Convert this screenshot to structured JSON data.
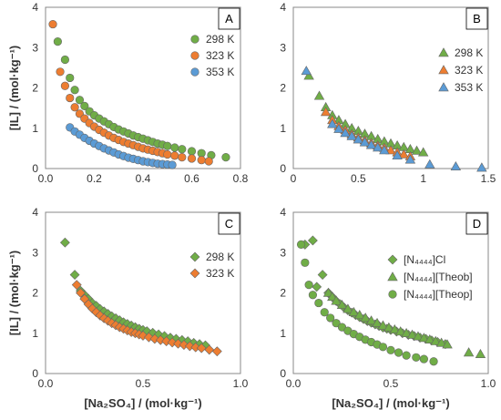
{
  "chart_data": [
    {
      "panel": "A",
      "type": "scatter",
      "ylabel": "[IL] / (mol·kg⁻¹)",
      "xlabel": "",
      "xlim": [
        0,
        0.8
      ],
      "ylim": [
        0,
        4
      ],
      "xticks": [
        0,
        0.2,
        0.4,
        0.6,
        0.8
      ],
      "xtick_labels": [
        "0.0",
        "0.2",
        "0.4",
        "0.6",
        "0.8"
      ],
      "yticks": [
        0,
        1,
        2,
        3,
        4
      ],
      "ytick_labels": [
        "0",
        "1",
        "2",
        "3",
        "4"
      ],
      "legend_position": "right",
      "series": [
        {
          "name": "298 K",
          "marker": "circle",
          "color": "#70ad47",
          "x": [
            0.05,
            0.08,
            0.1,
            0.12,
            0.14,
            0.16,
            0.18,
            0.2,
            0.22,
            0.24,
            0.26,
            0.28,
            0.3,
            0.32,
            0.34,
            0.36,
            0.38,
            0.4,
            0.42,
            0.44,
            0.46,
            0.48,
            0.5,
            0.53,
            0.56,
            0.6,
            0.64,
            0.68,
            0.74
          ],
          "y": [
            3.15,
            2.7,
            2.25,
            1.95,
            1.7,
            1.55,
            1.42,
            1.32,
            1.24,
            1.17,
            1.1,
            1.03,
            0.97,
            0.92,
            0.87,
            0.82,
            0.78,
            0.74,
            0.7,
            0.66,
            0.62,
            0.59,
            0.56,
            0.52,
            0.48,
            0.43,
            0.38,
            0.33,
            0.28
          ]
        },
        {
          "name": "323 K",
          "marker": "circle",
          "color": "#ed7d31",
          "x": [
            0.03,
            0.06,
            0.08,
            0.1,
            0.12,
            0.14,
            0.16,
            0.18,
            0.2,
            0.22,
            0.24,
            0.26,
            0.28,
            0.3,
            0.32,
            0.34,
            0.36,
            0.38,
            0.4,
            0.42,
            0.44,
            0.46,
            0.48,
            0.5,
            0.53,
            0.56,
            0.6,
            0.64,
            0.67
          ],
          "y": [
            3.58,
            2.4,
            2.05,
            1.75,
            1.52,
            1.36,
            1.24,
            1.13,
            1.04,
            0.96,
            0.89,
            0.82,
            0.76,
            0.71,
            0.66,
            0.62,
            0.58,
            0.54,
            0.5,
            0.47,
            0.44,
            0.41,
            0.38,
            0.35,
            0.32,
            0.28,
            0.25,
            0.21,
            0.18
          ]
        },
        {
          "name": "353 K",
          "marker": "circle",
          "color": "#5b9bd5",
          "x": [
            0.1,
            0.12,
            0.14,
            0.16,
            0.18,
            0.2,
            0.22,
            0.24,
            0.26,
            0.28,
            0.3,
            0.32,
            0.34,
            0.36,
            0.38,
            0.4,
            0.42,
            0.44,
            0.46,
            0.48,
            0.5,
            0.52
          ],
          "y": [
            1.02,
            0.92,
            0.84,
            0.76,
            0.69,
            0.62,
            0.56,
            0.5,
            0.45,
            0.4,
            0.35,
            0.31,
            0.27,
            0.24,
            0.21,
            0.18,
            0.16,
            0.14,
            0.12,
            0.11,
            0.1,
            0.09
          ]
        }
      ]
    },
    {
      "panel": "B",
      "type": "scatter",
      "ylabel": "",
      "xlabel": "",
      "xlim": [
        0,
        1.5
      ],
      "ylim": [
        0,
        4
      ],
      "xticks": [
        0,
        0.5,
        1,
        1.5
      ],
      "xtick_labels": [
        "0",
        "0.5",
        "1",
        "1.5"
      ],
      "yticks": [
        0,
        1,
        2,
        3,
        4
      ],
      "ytick_labels": [
        "0",
        "1",
        "2",
        "3",
        "4"
      ],
      "legend_position": "right",
      "series": [
        {
          "name": "298 K",
          "marker": "triangle",
          "color": "#70ad47",
          "x": [
            0.12,
            0.2,
            0.25,
            0.3,
            0.35,
            0.4,
            0.45,
            0.5,
            0.55,
            0.6,
            0.65,
            0.7,
            0.75,
            0.8,
            0.85,
            0.9,
            0.95,
            1.0
          ],
          "y": [
            2.3,
            1.8,
            1.52,
            1.32,
            1.2,
            1.1,
            1.0,
            0.93,
            0.86,
            0.8,
            0.73,
            0.67,
            0.62,
            0.57,
            0.53,
            0.48,
            0.44,
            0.4
          ]
        },
        {
          "name": "323 K",
          "marker": "triangle",
          "color": "#ed7d31",
          "x": [
            0.25,
            0.3,
            0.35,
            0.4,
            0.45,
            0.5,
            0.55,
            0.6,
            0.65,
            0.7,
            0.75,
            0.8,
            0.85,
            0.9
          ],
          "y": [
            1.4,
            1.2,
            1.05,
            0.95,
            0.85,
            0.77,
            0.7,
            0.63,
            0.57,
            0.51,
            0.45,
            0.4,
            0.35,
            0.3
          ]
        },
        {
          "name": "353 K",
          "marker": "triangle",
          "color": "#5b9bd5",
          "x": [
            0.1,
            0.3,
            0.35,
            0.4,
            0.45,
            0.5,
            0.55,
            0.6,
            0.65,
            0.7,
            0.8,
            0.9,
            1.05,
            1.25,
            1.45
          ],
          "y": [
            2.42,
            1.1,
            0.98,
            0.88,
            0.8,
            0.72,
            0.65,
            0.58,
            0.52,
            0.45,
            0.32,
            0.22,
            0.1,
            0.05,
            0.02
          ]
        }
      ]
    },
    {
      "panel": "C",
      "type": "scatter",
      "ylabel": "[IL] / (mol·kg⁻¹)",
      "xlabel": "[Na₂SO₄] / (mol·kg⁻¹)",
      "xlim": [
        0,
        1
      ],
      "ylim": [
        0,
        4
      ],
      "xticks": [
        0,
        0.5,
        1
      ],
      "xtick_labels": [
        "0.0",
        "0.5",
        "1.0"
      ],
      "yticks": [
        0,
        1,
        2,
        3,
        4
      ],
      "ytick_labels": [
        "0",
        "1",
        "2",
        "3",
        "4"
      ],
      "legend_position": "right",
      "series": [
        {
          "name": "298 K",
          "marker": "diamond",
          "color": "#70ad47",
          "x": [
            0.1,
            0.15,
            0.18,
            0.2,
            0.22,
            0.24,
            0.26,
            0.28,
            0.3,
            0.32,
            0.34,
            0.36,
            0.38,
            0.4,
            0.42,
            0.44,
            0.46,
            0.48,
            0.5,
            0.52,
            0.55,
            0.58,
            0.61,
            0.64,
            0.67,
            0.7,
            0.73,
            0.76,
            0.79,
            0.82
          ],
          "y": [
            3.25,
            2.45,
            2.05,
            1.95,
            1.85,
            1.75,
            1.68,
            1.6,
            1.54,
            1.48,
            1.42,
            1.37,
            1.32,
            1.27,
            1.23,
            1.19,
            1.15,
            1.11,
            1.08,
            1.05,
            1.01,
            0.97,
            0.93,
            0.89,
            0.86,
            0.83,
            0.8,
            0.76,
            0.73,
            0.7
          ]
        },
        {
          "name": "323 K",
          "marker": "diamond",
          "color": "#ed7d31",
          "x": [
            0.16,
            0.18,
            0.2,
            0.22,
            0.24,
            0.26,
            0.28,
            0.3,
            0.32,
            0.34,
            0.36,
            0.38,
            0.4,
            0.42,
            0.44,
            0.46,
            0.48,
            0.5,
            0.53,
            0.56,
            0.59,
            0.62,
            0.65,
            0.68,
            0.71,
            0.74,
            0.77,
            0.8,
            0.84,
            0.88
          ],
          "y": [
            2.2,
            2.0,
            1.85,
            1.72,
            1.61,
            1.52,
            1.44,
            1.37,
            1.31,
            1.25,
            1.2,
            1.15,
            1.11,
            1.07,
            1.03,
            1.0,
            0.97,
            0.94,
            0.9,
            0.86,
            0.83,
            0.8,
            0.77,
            0.74,
            0.71,
            0.68,
            0.65,
            0.63,
            0.59,
            0.55
          ]
        }
      ]
    },
    {
      "panel": "D",
      "type": "scatter",
      "ylabel": "",
      "xlabel": "[Na₂SO₄] / (mol·kg⁻¹)",
      "xlim": [
        0,
        1
      ],
      "ylim": [
        0,
        4
      ],
      "xticks": [
        0,
        0.5,
        1
      ],
      "xtick_labels": [
        "0.0",
        "0.5",
        "1.0"
      ],
      "yticks": [
        0,
        1,
        2,
        3,
        4
      ],
      "ytick_labels": [
        "0",
        "1",
        "2",
        "3",
        "4"
      ],
      "legend_position": "right",
      "series": [
        {
          "name": "[N₄₄₄₄]Cl",
          "marker": "diamond",
          "color": "#70ad47",
          "x": [
            0.06,
            0.1,
            0.12,
            0.15,
            0.18,
            0.2,
            0.22,
            0.24,
            0.26,
            0.28,
            0.3,
            0.32,
            0.34,
            0.36,
            0.38,
            0.4,
            0.42,
            0.44,
            0.46,
            0.48,
            0.5,
            0.53,
            0.56,
            0.59,
            0.62,
            0.65,
            0.68,
            0.71,
            0.74,
            0.78
          ],
          "y": [
            3.2,
            3.3,
            2.15,
            2.45,
            2.0,
            1.9,
            1.8,
            1.72,
            1.64,
            1.57,
            1.51,
            1.45,
            1.4,
            1.35,
            1.3,
            1.26,
            1.22,
            1.18,
            1.14,
            1.11,
            1.08,
            1.04,
            1.0,
            0.96,
            0.93,
            0.89,
            0.86,
            0.82,
            0.78,
            0.73
          ]
        },
        {
          "name": "[N₄₄₄₄][Theob]",
          "marker": "triangle",
          "color": "#70ad47",
          "x": [
            0.18,
            0.2,
            0.22,
            0.25,
            0.28,
            0.31,
            0.34,
            0.37,
            0.4,
            0.43,
            0.46,
            0.49,
            0.52,
            0.55,
            0.58,
            0.61,
            0.64,
            0.67,
            0.7,
            0.73,
            0.76,
            0.79,
            0.9,
            0.96
          ],
          "y": [
            2.0,
            1.9,
            1.8,
            1.7,
            1.6,
            1.52,
            1.45,
            1.38,
            1.31,
            1.25,
            1.19,
            1.14,
            1.09,
            1.04,
            1.0,
            0.96,
            0.92,
            0.88,
            0.84,
            0.8,
            0.76,
            0.72,
            0.52,
            0.48
          ]
        },
        {
          "name": "[N₄₄₄₄][Theop]",
          "marker": "circle",
          "color": "#70ad47",
          "x": [
            0.04,
            0.06,
            0.08,
            0.1,
            0.13,
            0.16,
            0.19,
            0.22,
            0.25,
            0.28,
            0.31,
            0.34,
            0.37,
            0.4,
            0.43,
            0.46,
            0.5,
            0.54,
            0.58,
            0.63,
            0.67,
            0.72
          ],
          "y": [
            3.2,
            2.75,
            2.2,
            1.95,
            1.75,
            1.52,
            1.38,
            1.25,
            1.15,
            1.06,
            0.98,
            0.91,
            0.84,
            0.78,
            0.72,
            0.66,
            0.58,
            0.52,
            0.45,
            0.4,
            0.36,
            0.3
          ]
        }
      ]
    }
  ]
}
